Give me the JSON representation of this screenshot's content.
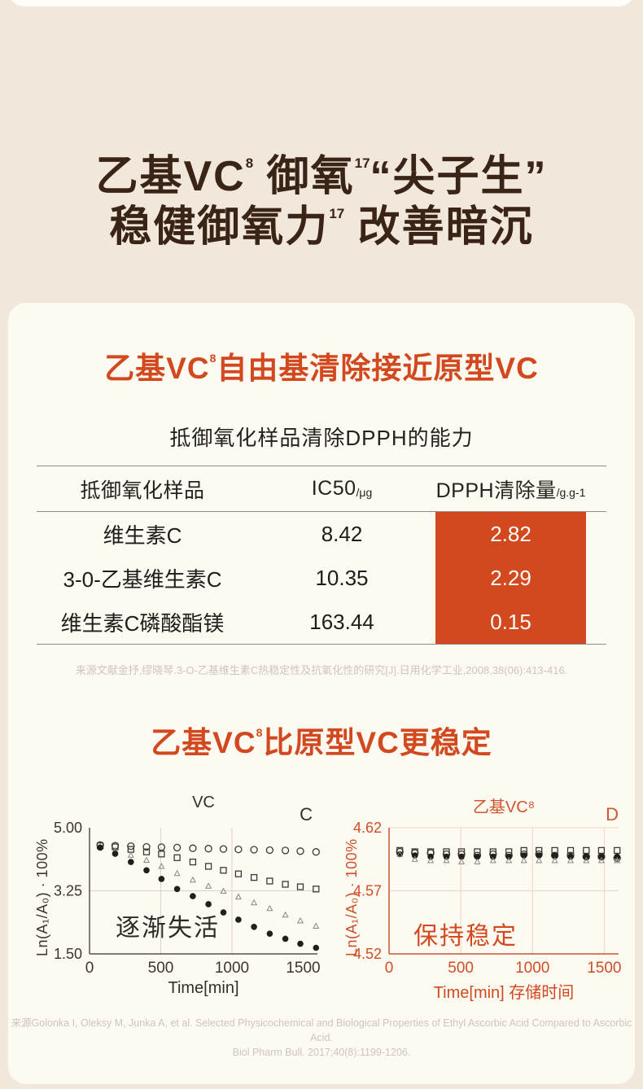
{
  "colors": {
    "page_bg": "#F2E7DB",
    "card_bg": "#FDFAF2",
    "headline_brown": "#3A2418",
    "accent_orange": "#D3491F",
    "highlight_text": "#FFFDF8",
    "cite_gray": "#CBC6BD"
  },
  "headline": {
    "l1a": "乙基VC",
    "l1s1": "8",
    "l1b": " 御氧",
    "l1s2": "17",
    "l1c": "“尖子生”",
    "l2a": "稳健御氧力",
    "l2s1": "17",
    "l2b": " 改善暗沉"
  },
  "section1": {
    "title_a": "乙基VC",
    "title_sup": "8",
    "title_b": "自由基清除接近原型VC"
  },
  "section2": {
    "title_a": "乙基VC",
    "title_sup": "8",
    "title_b": "比原型VC更稳定"
  },
  "table": {
    "title": "抵御氧化样品清除DPPH的能力",
    "col1_header": "抵御氧化样品",
    "col2_header": "IC50",
    "col2_unit": "/μg",
    "col3_header": "DPPH清除量",
    "col3_unit": "/g.g-1",
    "rows": [
      {
        "name": "维生素C",
        "ic50": "8.42",
        "dpph": "2.82"
      },
      {
        "name": "3-0-乙基维生素C",
        "ic50": "10.35",
        "dpph": "2.29"
      },
      {
        "name": "维生素C磷酸酯镁",
        "ic50": "163.44",
        "dpph": "0.15"
      }
    ]
  },
  "citations": {
    "table_source": "来源文献金抒,缪晓琴.3-O-乙基维生素C热稳定性及抗氧化性的研究[J].日用化学工业,2008,38(06):413-416.",
    "chart_source_line1": "来源Golonka I, Oleksy M, Junka A, et al. Selected Physicochemical and Biological Properties of Ethyl Ascorbic Acid Compared to Ascorbic Acid.",
    "chart_source_line2": "Biol Pharm Bull. 2017;40(8):1199-1206."
  },
  "chart_data": [
    {
      "type": "scatter",
      "title": "VC",
      "corner_label": "C",
      "xlabel": "Time[min]",
      "ylabel": "Ln(A₁/A₀) · 100%",
      "annotation": "逐渐失活",
      "xlim": [
        0,
        1600
      ],
      "ylim": [
        1.5,
        5.0
      ],
      "xticks": [
        0,
        500,
        1000,
        1500
      ],
      "yticks": [
        {
          "v": 5.0,
          "label": "5.00"
        },
        {
          "v": 3.25,
          "label": "3.25"
        },
        {
          "v": 1.5,
          "label": "1.50"
        }
      ],
      "grid_x": [
        500,
        1000
      ],
      "grid_y": [
        3.25
      ],
      "frame_top": false,
      "legend_position": "none",
      "x": [
        75,
        180,
        290,
        400,
        505,
        615,
        725,
        835,
        940,
        1045,
        1155,
        1265,
        1375,
        1480,
        1590
      ],
      "series": [
        {
          "name": "open-circle",
          "marker": "circle-open",
          "values": [
            4.52,
            4.5,
            4.49,
            4.47,
            4.46,
            4.45,
            4.43,
            4.42,
            4.41,
            4.4,
            4.39,
            4.38,
            4.37,
            4.35,
            4.33
          ]
        },
        {
          "name": "open-square",
          "marker": "square-open",
          "values": [
            4.5,
            4.47,
            4.4,
            4.33,
            4.27,
            4.17,
            4.05,
            3.93,
            3.82,
            3.72,
            3.62,
            3.52,
            3.43,
            3.36,
            3.3
          ]
        },
        {
          "name": "open-triangle",
          "marker": "triangle-open",
          "values": [
            4.47,
            4.36,
            4.24,
            4.1,
            3.93,
            3.73,
            3.55,
            3.38,
            3.24,
            3.08,
            2.92,
            2.76,
            2.58,
            2.42,
            2.27
          ]
        },
        {
          "name": "filled-circle",
          "marker": "circle-filled",
          "values": [
            4.45,
            4.28,
            4.05,
            3.82,
            3.58,
            3.3,
            3.1,
            2.88,
            2.65,
            2.45,
            2.25,
            2.06,
            1.92,
            1.78,
            1.67
          ]
        }
      ]
    },
    {
      "type": "scatter",
      "title": "乙基VC⁸",
      "corner_label": "D",
      "xlabel": "Time[min] 存储时间",
      "ylabel": "Ln(A₁/A₀) · 100%",
      "annotation": "保持稳定",
      "xlim": [
        0,
        1600
      ],
      "ylim": [
        4.52,
        4.62
      ],
      "xticks": [
        0,
        500,
        1000,
        1500
      ],
      "yticks": [
        {
          "v": 4.62,
          "label": "4.62"
        },
        {
          "v": 4.57,
          "label": "4.57"
        },
        {
          "v": 4.52,
          "label": "4.52"
        }
      ],
      "grid_x": [
        500,
        1000,
        1500
      ],
      "grid_y": [
        4.57
      ],
      "frame_top": true,
      "legend_position": "none",
      "x": [
        75,
        180,
        290,
        400,
        505,
        615,
        725,
        835,
        940,
        1045,
        1155,
        1265,
        1375,
        1480,
        1590
      ],
      "series": [
        {
          "name": "open-square",
          "marker": "square-open",
          "values": [
            4.602,
            4.601,
            4.601,
            4.601,
            4.601,
            4.601,
            4.601,
            4.601,
            4.602,
            4.602,
            4.602,
            4.602,
            4.602,
            4.602,
            4.602
          ]
        },
        {
          "name": "open-circle",
          "marker": "circle-open",
          "values": [
            4.601,
            4.6,
            4.6,
            4.599,
            4.599,
            4.598,
            4.599,
            4.598,
            4.599,
            4.599,
            4.598,
            4.598,
            4.597,
            4.597,
            4.596
          ]
        },
        {
          "name": "filled-circle",
          "marker": "circle-filled",
          "values": [
            4.599,
            4.598,
            4.597,
            4.597,
            4.597,
            4.597,
            4.597,
            4.597,
            4.598,
            4.598,
            4.598,
            4.597,
            4.597,
            4.597,
            4.597
          ]
        },
        {
          "name": "open-triangle",
          "marker": "triangle-open",
          "values": [
            4.599,
            4.595,
            4.594,
            4.594,
            4.593,
            4.593,
            4.594,
            4.594,
            4.594,
            4.594,
            4.594,
            4.594,
            4.594,
            4.594,
            4.594
          ]
        }
      ]
    }
  ]
}
